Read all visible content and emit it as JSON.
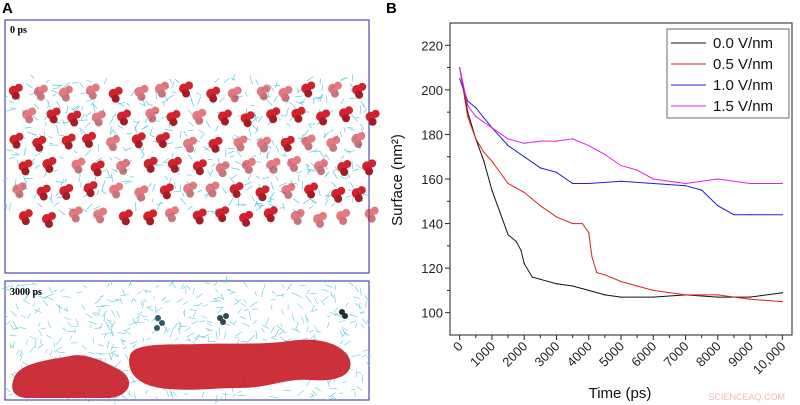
{
  "panel_a": {
    "letter": "A",
    "snapshots": [
      {
        "label": "0 ps"
      },
      {
        "label": "3000 ps"
      }
    ],
    "colors": {
      "frame": "#4b4bb0",
      "solvent": "#5fc8e0",
      "molecule": "#d0232b"
    }
  },
  "chart_data": {
    "letter": "B",
    "type": "line",
    "xlabel": "Time (ps)",
    "ylabel": "Surface (nm²)",
    "xlim": [
      -300,
      10300
    ],
    "ylim": [
      90,
      230
    ],
    "xticks": [
      0,
      1000,
      2000,
      3000,
      4000,
      5000,
      6000,
      7000,
      8000,
      9000,
      10000
    ],
    "xtick_labels": [
      "0",
      "1000",
      "2000",
      "3000",
      "4000",
      "5000",
      "6000",
      "7000",
      "8000",
      "9000",
      "10,000"
    ],
    "yticks": [
      100,
      120,
      140,
      160,
      180,
      200,
      220
    ],
    "ytick_labels": [
      "100",
      "120",
      "140",
      "160",
      "180",
      "200",
      "220"
    ],
    "grid": false,
    "legend_position": "top-right",
    "series": [
      {
        "name": "0.0 V/nm",
        "color": "#111111",
        "x": [
          0,
          250,
          500,
          750,
          1000,
          1250,
          1500,
          1750,
          1900,
          2000,
          2250,
          2500,
          3000,
          3500,
          4000,
          4500,
          5000,
          6000,
          7000,
          8000,
          9000,
          10000
        ],
        "y": [
          210,
          190,
          178,
          168,
          155,
          145,
          135,
          132,
          128,
          122,
          116,
          115,
          113,
          112,
          110,
          108,
          107,
          107,
          108,
          107,
          107,
          109
        ]
      },
      {
        "name": "0.5 V/nm",
        "color": "#e02020",
        "x": [
          0,
          250,
          500,
          750,
          1000,
          1500,
          2000,
          2500,
          3000,
          3500,
          3800,
          4000,
          4100,
          4250,
          4500,
          5000,
          5500,
          6000,
          7000,
          8000,
          9000,
          10000
        ],
        "y": [
          210,
          188,
          178,
          172,
          168,
          158,
          154,
          148,
          143,
          140,
          140,
          136,
          125,
          118,
          117,
          114,
          112,
          110,
          108,
          108,
          106,
          105
        ]
      },
      {
        "name": "1.0 V/nm",
        "color": "#2020d0",
        "x": [
          0,
          250,
          500,
          1000,
          1500,
          2000,
          2500,
          3000,
          3500,
          4000,
          5000,
          6000,
          7000,
          7500,
          8000,
          8500,
          9000,
          10000
        ],
        "y": [
          205,
          195,
          192,
          183,
          175,
          170,
          165,
          163,
          158,
          158,
          159,
          158,
          157,
          155,
          148,
          144,
          144,
          144
        ]
      },
      {
        "name": "1.5 V/nm",
        "color": "#e020e0",
        "x": [
          0,
          250,
          500,
          1000,
          1500,
          2000,
          2500,
          3000,
          3500,
          4000,
          4500,
          5000,
          5500,
          6000,
          7000,
          8000,
          9000,
          10000
        ],
        "y": [
          210,
          193,
          188,
          183,
          178,
          176,
          177,
          177,
          178,
          175,
          171,
          166,
          164,
          160,
          158,
          160,
          158,
          158
        ]
      }
    ]
  },
  "watermark": "SCIENCEAQ.COM"
}
